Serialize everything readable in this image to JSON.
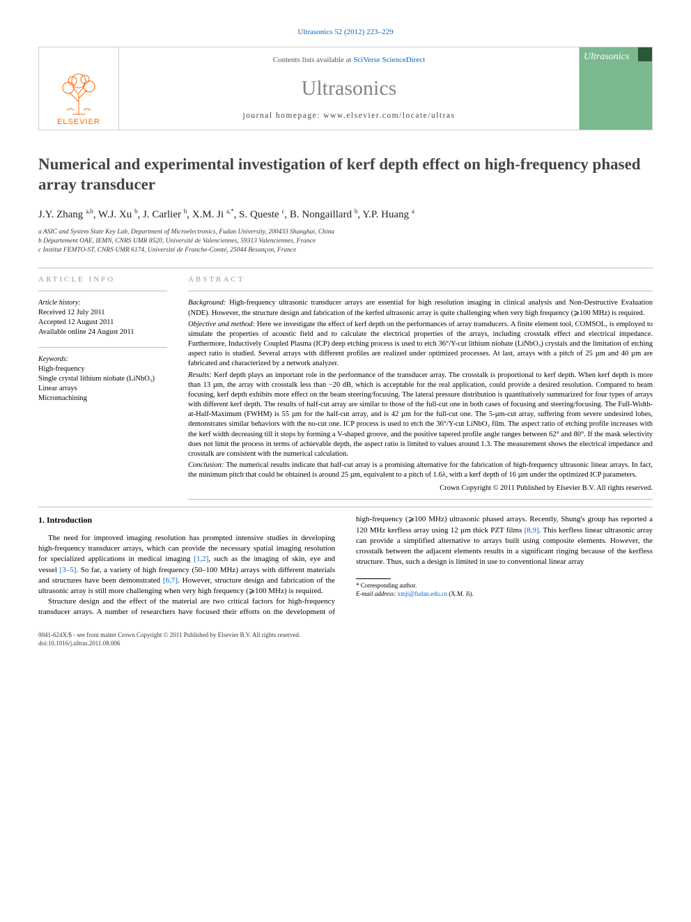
{
  "top_citation": "Ultrasonics 52 (2012) 223–229",
  "header": {
    "contents_prefix": "Contents lists available at ",
    "contents_link": "SciVerse ScienceDirect",
    "journal": "Ultrasonics",
    "homepage_label": "journal homepage: www.elsevier.com/locate/ultras",
    "publisher_logo_text": "ELSEVIER",
    "cover_text": "Ultrasonics"
  },
  "title": "Numerical and experimental investigation of kerf depth effect on high-frequency phased array transducer",
  "authors_html": "J.Y. Zhang <sup>a,b</sup>, W.J. Xu <sup>b</sup>, J. Carlier <sup>b</sup>, X.M. Ji <sup>a,*</sup>, S. Queste <sup>c</sup>, B. Nongaillard <sup>b</sup>, Y.P. Huang <sup>a</sup>",
  "affiliations": [
    "a ASIC and System State Key Lab, Department of Microelectronics, Fudan University, 200433 Shanghai, China",
    "b Département OAE, IEMN, CNRS UMR 8520, Université de Valenciennes, 59313 Valenciennes, France",
    "c Institut FEMTO-ST, CNRS UMR 6174, Université de Franche-Comté, 25044 Besançon, France"
  ],
  "info": {
    "head": "ARTICLE INFO",
    "history_label": "Article history:",
    "history": [
      "Received 12 July 2011",
      "Accepted 12 August 2011",
      "Available online 24 August 2011"
    ],
    "keywords_label": "Keywords:",
    "keywords": [
      "High-frequency",
      "Single crystal lithium niobate (LiNbO₃)",
      "Linear arrays",
      "Micromachining"
    ]
  },
  "abstract": {
    "head": "ABSTRACT",
    "paragraphs": [
      {
        "lead": "Background:",
        "text": " High-frequency ultrasonic transducer arrays are essential for high resolution imaging in clinical analysis and Non-Destructive Evaluation (NDE). However, the structure design and fabrication of the kerfed ultrasonic array is quite challenging when very high frequency (⩾100 MHz) is required."
      },
      {
        "lead": "Objective and method:",
        "text": " Here we investigate the effect of kerf depth on the performances of array transducers. A finite element tool, COMSOL, is employed to simulate the properties of acoustic field and to calculate the electrical properties of the arrays, including crosstalk effect and electrical impedance. Furthermore, Inductively Coupled Plasma (ICP) deep etching process is used to etch 36°/Y-cut lithium niobate (LiNbO₃) crystals and the limitation of etching aspect ratio is studied. Several arrays with different profiles are realized under optimized processes. At last, arrays with a pitch of 25 µm and 40 µm are fabricated and characterized by a network analyzer."
      },
      {
        "lead": "Results:",
        "text": " Kerf depth plays an important role in the performance of the transducer array. The crosstalk is proportional to kerf depth. When kerf depth is more than 13 µm, the array with crosstalk less than −20 dB, which is acceptable for the real application, could provide a desired resolution. Compared to beam focusing, kerf depth exhibits more effect on the beam steering/focusing. The lateral pressure distribution is quantitatively summarized for four types of arrays with different kerf depth. The results of half-cut array are similar to those of the full-cut one in both cases of focusing and steering/focusing. The Full-Width-at-Half-Maximum (FWHM) is 55 µm for the half-cut array, and is 42 µm for the full-cut one. The 5-µm-cut array, suffering from severe undesired lobes, demonstrates similar behaviors with the no-cut one. ICP process is used to etch the 36°/Y-cut LiNbO₃ film. The aspect ratio of etching profile increases with the kerf width decreasing till it stops by forming a V-shaped groove, and the positive tapered profile angle ranges between 62° and 80°. If the mask selectivity does not limit the process in terms of achievable depth, the aspect ratio is limited to values around 1.3. The measurement shows the electrical impedance and crosstalk are consistent with the numerical calculation."
      },
      {
        "lead": "Conclusion:",
        "text": " The numerical results indicate that half-cut array is a promising alternative for the fabrication of high-frequency ultrasonic linear arrays. In fact, the minimum pitch that could be obtained is around 25 µm, equivalent to a pitch of 1.6λ, with a kerf depth of 16 µm under the optimized ICP parameters."
      }
    ],
    "copyright": "Crown Copyright © 2011 Published by Elsevier B.V. All rights reserved."
  },
  "introduction": {
    "heading": "1. Introduction",
    "para1_pre": "The need for improved imaging resolution has prompted intensive studies in developing high-frequency transducer arrays, which can provide the necessary spatial imaging resolution for specialized applications in medical imaging ",
    "ref1": "[1,2]",
    "para1_mid1": ", such as the imaging of skin, eye and vessel ",
    "ref2": "[3–5]",
    "para1_mid2": ". So far, a variety of high frequency (50–100 MHz) arrays with different materials and structures have been demonstrated ",
    "ref3": "[6,7]",
    "para1_post": ". However, structure design and fabrication of the ultrasonic array is still more challenging when very high frequency (⩾100 MHz) is required.",
    "para2_pre": "Structure design and the effect of the material are two critical factors for high-frequency transducer arrays. A number of researchers have focused their efforts on the development of high-frequency (⩾100 MHz) ultrasonic phased arrays. Recently, Shung's group has reported a 120 MHz kerfless array using 12 µm thick PZT films ",
    "ref4": "[8,9]",
    "para2_post": ". This kerfless linear ultrasonic array can provide a simplified alternative to arrays built using composite elements. However, the crosstalk between the adjacent elements results in a significant ringing because of the kerfless structure. Thus, such a design is limited in use to conventional linear array"
  },
  "footnote": {
    "corr": "* Corresponding author.",
    "email_label": "E-mail address: ",
    "email": "xmji@fudan.edu.cn",
    "email_suffix": " (X.M. Ji)."
  },
  "doi": {
    "line1": "0041-624X/$ - see front matter Crown Copyright © 2011 Published by Elsevier B.V. All rights reserved.",
    "line2": "doi:10.1016/j.ultras.2011.08.006"
  },
  "colors": {
    "link": "#0066cc",
    "logo_orange": "#ff6600",
    "cover_green": "#7bb88f",
    "cover_dark": "#2a5735",
    "heading_grey": "#999999",
    "title_grey": "#848484"
  }
}
